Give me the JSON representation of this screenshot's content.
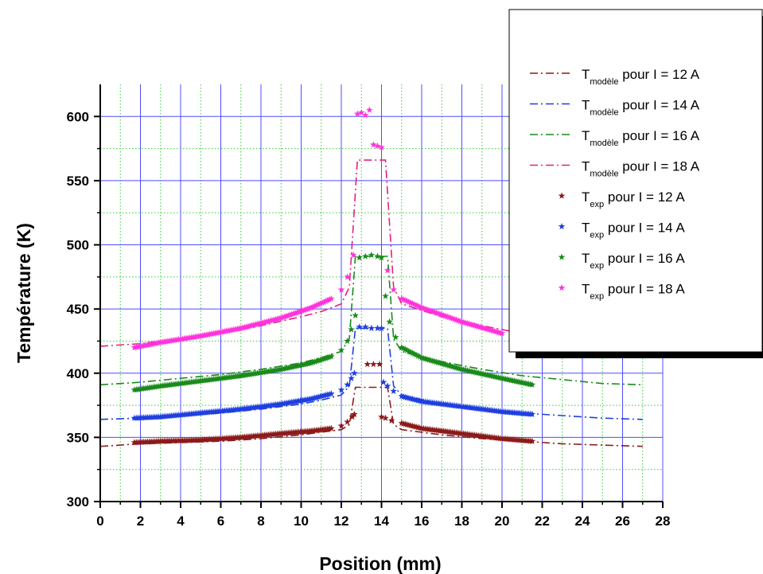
{
  "chart_data": {
    "type": "line",
    "xlabel": "Position (mm)",
    "ylabel": "Température (K)",
    "xlim": [
      0,
      28
    ],
    "ylim": [
      300,
      625
    ],
    "x_ticks": [
      0,
      2,
      4,
      6,
      8,
      10,
      12,
      14,
      16,
      18,
      20,
      22,
      24,
      26,
      28
    ],
    "y_ticks": [
      300,
      350,
      400,
      450,
      500,
      550,
      600
    ],
    "grid": true,
    "legend_position": "top-right",
    "series": [
      {
        "name": "T",
        "sub": "modèle",
        "suffix": " pour I = 12 A",
        "style": "dashdot",
        "color": "#8b1a1a",
        "x": [
          0,
          2,
          4,
          6,
          8,
          10,
          11,
          12,
          12.4,
          12.7,
          14.3,
          14.6,
          15,
          17,
          19,
          21,
          23,
          25,
          27
        ],
        "y": [
          343,
          345,
          346,
          347,
          349,
          352,
          354,
          356,
          360,
          389,
          389,
          360,
          356,
          352,
          349,
          347,
          345,
          344,
          343
        ]
      },
      {
        "name": "T",
        "sub": "modèle",
        "suffix": " pour I = 14 A",
        "style": "dashdot",
        "color": "#1f3fe0",
        "x": [
          0,
          2,
          4,
          6,
          8,
          10,
          11,
          12,
          12.4,
          12.7,
          14.3,
          14.6,
          15,
          17,
          19,
          21,
          23,
          25,
          27
        ],
        "y": [
          364,
          365,
          367,
          369,
          372,
          376,
          379,
          383,
          390,
          435,
          435,
          390,
          383,
          376,
          372,
          369,
          367,
          365,
          364
        ]
      },
      {
        "name": "T",
        "sub": "modèle",
        "suffix": " pour I = 16 A",
        "style": "dashdot",
        "color": "#1a8a1a",
        "x": [
          0,
          2,
          4,
          6,
          8,
          10,
          11,
          12,
          12.4,
          12.7,
          14.3,
          14.6,
          15,
          17,
          19,
          21,
          23,
          25,
          27
        ],
        "y": [
          391,
          393,
          396,
          399,
          403,
          408,
          412,
          417,
          427,
          491,
          491,
          427,
          417,
          409,
          403,
          398,
          395,
          392,
          391
        ]
      },
      {
        "name": "T",
        "sub": "modèle",
        "suffix": " pour I = 18 A",
        "style": "dashdot",
        "color": "#e8207a",
        "x": [
          0,
          2,
          4,
          6,
          8,
          10,
          11,
          12,
          12.4,
          12.8,
          14.2,
          14.6,
          15,
          17,
          19,
          21
        ],
        "y": [
          421,
          423,
          427,
          431,
          437,
          444,
          448,
          454,
          467,
          566,
          566,
          467,
          454,
          444,
          437,
          431
        ]
      },
      {
        "name": "T",
        "sub": "exp",
        "suffix": " pour I = 12 A",
        "style": "markers",
        "color": "#8b1a1a",
        "x": [
          1.7,
          3,
          5,
          7,
          9,
          10.5,
          11.5,
          12.0,
          12.3,
          12.55,
          12.65,
          13.3,
          13.6,
          13.9,
          14.0,
          14.2,
          14.5,
          15,
          16,
          18,
          20,
          21.5
        ],
        "y": [
          346,
          347,
          348,
          350,
          353,
          355,
          357,
          359,
          362,
          366,
          368,
          407,
          407,
          407,
          366,
          365,
          363,
          361,
          357,
          353,
          349,
          347
        ]
      },
      {
        "name": "T",
        "sub": "exp",
        "suffix": " pour I = 14 A",
        "style": "markers",
        "color": "#1f3fe0",
        "x": [
          1.7,
          3,
          5,
          7,
          9,
          10.5,
          11.5,
          12.0,
          12.3,
          12.5,
          12.65,
          12.9,
          13.2,
          13.5,
          13.8,
          14.0,
          14.1,
          14.3,
          14.6,
          15,
          16,
          18,
          20,
          21.5
        ],
        "y": [
          365,
          366,
          369,
          372,
          376,
          380,
          384,
          387,
          391,
          396,
          400,
          436,
          436,
          435,
          435,
          435,
          393,
          390,
          386,
          382,
          378,
          374,
          370,
          368
        ]
      },
      {
        "name": "T",
        "sub": "exp",
        "suffix": " pour I = 16 A",
        "style": "markers",
        "color": "#1a8a1a",
        "x": [
          1.7,
          3,
          5,
          7,
          9,
          10.5,
          11.5,
          12.0,
          12.3,
          12.5,
          12.7,
          12.9,
          13.2,
          13.5,
          13.8,
          14.0,
          14.2,
          14.4,
          14.7,
          15,
          16,
          18,
          20,
          21.5
        ],
        "y": [
          387,
          390,
          394,
          398,
          403,
          408,
          413,
          418,
          425,
          434,
          445,
          490,
          491,
          492,
          491,
          490,
          460,
          440,
          428,
          420,
          412,
          403,
          396,
          391
        ]
      },
      {
        "name": "T",
        "sub": "exp",
        "suffix": " pour I = 18 A",
        "style": "markers",
        "color": "#ff33dd",
        "x": [
          1.7,
          3,
          5,
          7,
          9,
          10.5,
          11.5,
          12.0,
          12.3,
          12.6,
          12.8,
          13.0,
          13.2,
          13.4,
          13.6,
          13.8,
          14.0,
          14.3,
          14.6,
          15,
          16,
          18,
          20
        ],
        "y": [
          420,
          424,
          429,
          435,
          443,
          451,
          458,
          465,
          475,
          492,
          602,
          603,
          601,
          605,
          578,
          577,
          576,
          480,
          465,
          458,
          451,
          440,
          431
        ]
      }
    ]
  }
}
